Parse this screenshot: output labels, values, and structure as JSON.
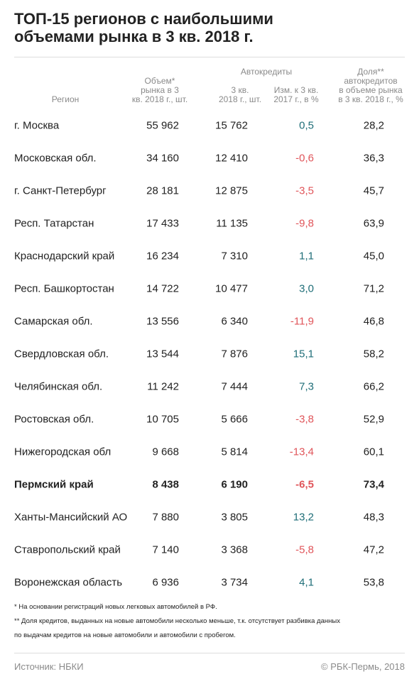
{
  "header": {
    "title": [
      "ТОП-15 регионов с наибольшими",
      "объемами рынка в 3 кв. 2018 г."
    ]
  },
  "table": {
    "group_header": "Автокредиты",
    "columns": [
      [
        "Регион"
      ],
      [
        "Объем*",
        "рынка в 3",
        "кв. 2018 г., шт."
      ],
      [
        "3 кв.",
        "2018 г., шт."
      ],
      [
        "Изм. к 3 кв.",
        "2017 г., в %"
      ],
      [
        "Доля**",
        "автокредитов",
        "в объеме рынка",
        "в 3 кв. 2018 г., %"
      ]
    ],
    "positive_color": "#1f6e78",
    "negative_color": "#e0555a",
    "highlight_row": 11,
    "rows": [
      [
        "г. Москва",
        "55 962",
        "15 762",
        "0,5",
        "28,2"
      ],
      [
        "Московская обл.",
        "34 160",
        "12 410",
        "-0,6",
        "36,3"
      ],
      [
        "г. Санкт-Петербург",
        "28 181",
        "12 875",
        "-3,5",
        "45,7"
      ],
      [
        "Респ. Татарстан",
        "17 433",
        "11 135",
        "-9,8",
        "63,9"
      ],
      [
        "Краснодарский край",
        "16 234",
        "7 310",
        "1,1",
        "45,0"
      ],
      [
        "Респ. Башкортостан",
        "14 722",
        "10 477",
        "3,0",
        "71,2"
      ],
      [
        "Самарская обл.",
        "13 556",
        "6 340",
        "-11,9",
        "46,8"
      ],
      [
        "Свердловская обл.",
        "13 544",
        "7 876",
        "15,1",
        "58,2"
      ],
      [
        "Челябинская обл.",
        "11 242",
        "7 444",
        "7,3",
        "66,2"
      ],
      [
        "Ростовская обл.",
        "10 705",
        "5 666",
        "-3,8",
        "52,9"
      ],
      [
        "Нижегородская обл",
        "9 668",
        "5 814",
        "-13,4",
        "60,1"
      ],
      [
        "Пермский край",
        "8 438",
        "6 190",
        "-6,5",
        "73,4"
      ],
      [
        "Ханты-Мансийский АО",
        "7 880",
        "3 805",
        "13,2",
        "48,3"
      ],
      [
        "Ставропольский край",
        "7 140",
        "3 368",
        "-5,8",
        "47,2"
      ],
      [
        "Воронежская область",
        "6 936",
        "3 734",
        "4,1",
        "53,8"
      ]
    ]
  },
  "footnotes": [
    "* На основании регистраций новых легковых автомобилей в РФ.",
    "** Доля кредитов, выданных на новые автомобили несколько меньше, т.к. отсутствует разбивка данных",
    "по выдачам кредитов на новые автомобили и автомобили с пробегом."
  ],
  "footer": {
    "source": "Источник: НБКИ",
    "copyright": "© РБК-Пермь, 2018"
  }
}
